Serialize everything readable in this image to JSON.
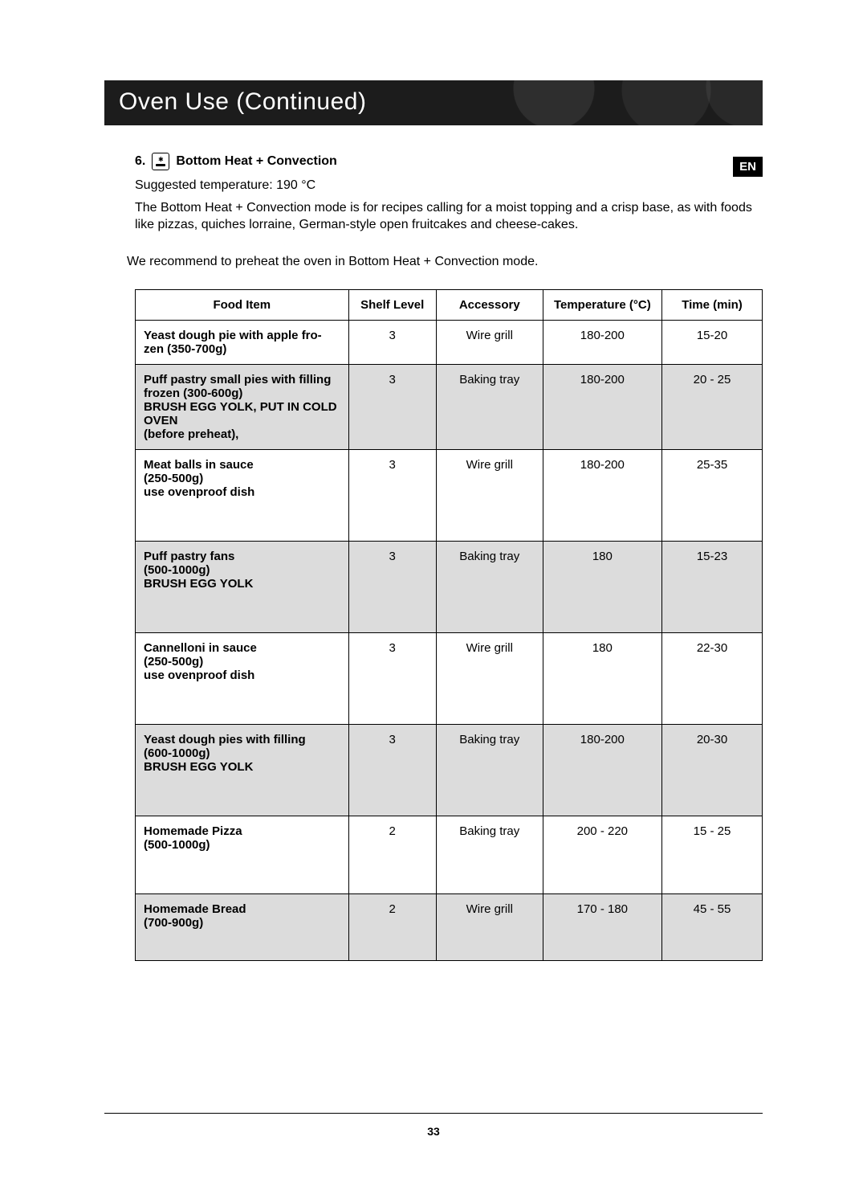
{
  "header": {
    "title": "Oven Use (Continued)"
  },
  "lang_badge": "EN",
  "section": {
    "number": "6.",
    "title": "Bottom Heat + Convection",
    "suggested": "Suggested temperature: 190 °C",
    "description": "The Bottom Heat + Convection mode is for recipes calling for a moist topping and a crisp base, as with foods like pizzas, quiches lorraine, German-style open fruitcakes and cheese-cakes.",
    "recommend": "We recommend to preheat the oven in Bottom Heat + Convection mode."
  },
  "table": {
    "headers": {
      "food": "Food Item",
      "shelf": "Shelf Level",
      "accessory": "Accessory",
      "temp": "Temperature (°C)",
      "time": "Time (min)"
    },
    "rows": [
      {
        "food": "Yeast dough pie with apple fro-zen (350-700g)",
        "shelf": "3",
        "accessory": "Wire grill",
        "temp": "180-200",
        "time": "15-20",
        "shaded": false,
        "tall": false
      },
      {
        "food": "Puff pastry small pies with filling frozen (300-600g)\nBRUSH EGG YOLK, PUT IN COLD OVEN\n(before preheat),",
        "shelf": "3",
        "accessory": "Baking tray",
        "temp": "180-200",
        "time": "20 - 25",
        "shaded": true,
        "tall": false
      },
      {
        "food": "Meat balls in sauce\n(250-500g)\nuse ovenproof dish",
        "shelf": "3",
        "accessory": "Wire grill",
        "temp": "180-200",
        "time": "25-35",
        "shaded": false,
        "tall": true
      },
      {
        "food": "Puff pastry fans\n(500-1000g)\nBRUSH EGG YOLK",
        "shelf": "3",
        "accessory": "Baking tray",
        "temp": "180",
        "time": "15-23",
        "shaded": true,
        "tall": true
      },
      {
        "food": "Cannelloni in sauce\n (250-500g)\nuse ovenproof dish",
        "shelf": "3",
        "accessory": "Wire grill",
        "temp": "180",
        "time": "22-30",
        "shaded": false,
        "tall": true
      },
      {
        "food": "Yeast dough pies with filling\n(600-1000g)\nBRUSH EGG YOLK",
        "shelf": "3",
        "accessory": "Baking tray",
        "temp": "180-200",
        "time": "20-30",
        "shaded": true,
        "tall": true
      },
      {
        "food": "Homemade Pizza\n(500-1000g)",
        "shelf": "2",
        "accessory": "Baking tray",
        "temp": "200 - 220",
        "time": "15 - 25",
        "shaded": false,
        "tall": true
      },
      {
        "food": "Homemade Bread\n(700-900g)",
        "shelf": "2",
        "accessory": "Wire grill",
        "temp": "170 - 180",
        "time": "45 - 55",
        "shaded": true,
        "tall": false,
        "med": true
      }
    ]
  },
  "page_number": "33"
}
